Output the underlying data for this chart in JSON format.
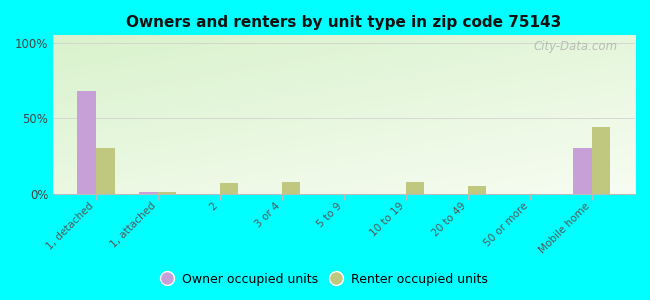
{
  "title": "Owners and renters by unit type in zip code 75143",
  "categories": [
    "1, detached",
    "1, attached",
    "2",
    "3 or 4",
    "5 to 9",
    "10 to 19",
    "20 to 49",
    "50 or more",
    "Mobile home"
  ],
  "owner_values": [
    68,
    1,
    0,
    0,
    0,
    0,
    0,
    0,
    30
  ],
  "renter_values": [
    30,
    1,
    7,
    8,
    0,
    8,
    5,
    0,
    44
  ],
  "owner_color": "#c8a0d8",
  "renter_color": "#c0c880",
  "background_color": "#00ffff",
  "yticks": [
    0,
    50,
    100
  ],
  "ylim": [
    0,
    105
  ],
  "ylabel_labels": [
    "0%",
    "50%",
    "100%"
  ],
  "watermark": "City-Data.com",
  "legend_owner": "Owner occupied units",
  "legend_renter": "Renter occupied units",
  "bar_width": 0.3
}
